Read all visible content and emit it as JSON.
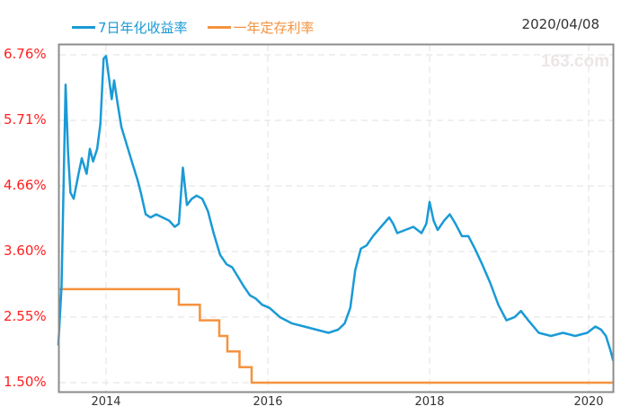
{
  "header": {
    "date": "2020/04/08",
    "watermark": "163.com"
  },
  "legend": [
    {
      "label": "7日年化收益率",
      "color": "#1a9ad6"
    },
    {
      "label": "一年定存利率",
      "color": "#f5923e"
    }
  ],
  "chart_data": {
    "type": "line",
    "title": "",
    "xlabel": "",
    "ylabel": "",
    "ylim": [
      1.5,
      6.76
    ],
    "xlim": [
      2013.4,
      2020.27
    ],
    "y_ticks": [
      "6.76%",
      "5.71%",
      "4.66%",
      "3.60%",
      "2.55%",
      "1.50%"
    ],
    "x_ticks": [
      "2014",
      "2016",
      "2018",
      "2020"
    ],
    "grid": true,
    "legend_position": "top-left",
    "series": [
      {
        "name": "7日年化收益率",
        "color": "#1a9ad6",
        "x": [
          2013.41,
          2013.45,
          2013.5,
          2013.53,
          2013.56,
          2013.6,
          2013.66,
          2013.7,
          2013.76,
          2013.8,
          2013.84,
          2013.89,
          2013.93,
          2013.97,
          2014.0,
          2014.02,
          2014.07,
          2014.1,
          2014.14,
          2014.19,
          2014.26,
          2014.33,
          2014.39,
          2014.43,
          2014.49,
          2014.55,
          2014.62,
          2014.7,
          2014.78,
          2014.85,
          2014.9,
          2014.95,
          2015.0,
          2015.06,
          2015.12,
          2015.19,
          2015.26,
          2015.33,
          2015.41,
          2015.49,
          2015.56,
          2015.63,
          2015.7,
          2015.78,
          2015.85,
          2015.93,
          2016.02,
          2016.15,
          2016.3,
          2016.45,
          2016.6,
          2016.75,
          2016.87,
          2016.95,
          2017.02,
          2017.08,
          2017.15,
          2017.22,
          2017.3,
          2017.4,
          2017.5,
          2017.55,
          2017.6,
          2017.7,
          2017.8,
          2017.9,
          2017.96,
          2018.0,
          2018.05,
          2018.1,
          2018.18,
          2018.25,
          2018.32,
          2018.4,
          2018.48,
          2018.56,
          2018.65,
          2018.75,
          2018.85,
          2018.95,
          2019.05,
          2019.13,
          2019.22,
          2019.35,
          2019.5,
          2019.65,
          2019.8,
          2019.95,
          2020.05,
          2020.12,
          2020.18,
          2020.24,
          2020.27
        ],
        "values": [
          2.1,
          3.05,
          6.28,
          5.2,
          4.55,
          4.45,
          4.85,
          5.1,
          4.85,
          5.25,
          5.05,
          5.25,
          5.65,
          6.7,
          6.74,
          6.55,
          6.05,
          6.35,
          6.0,
          5.6,
          5.3,
          5.0,
          4.75,
          4.55,
          4.2,
          4.15,
          4.2,
          4.15,
          4.1,
          4.0,
          4.05,
          4.95,
          4.35,
          4.45,
          4.5,
          4.45,
          4.25,
          3.9,
          3.55,
          3.4,
          3.35,
          3.2,
          3.05,
          2.9,
          2.85,
          2.75,
          2.7,
          2.55,
          2.45,
          2.4,
          2.35,
          2.3,
          2.35,
          2.45,
          2.7,
          3.3,
          3.65,
          3.7,
          3.85,
          4.0,
          4.15,
          4.05,
          3.9,
          3.95,
          4.0,
          3.9,
          4.05,
          4.4,
          4.1,
          3.95,
          4.1,
          4.2,
          4.05,
          3.85,
          3.85,
          3.65,
          3.4,
          3.1,
          2.75,
          2.5,
          2.55,
          2.65,
          2.5,
          2.3,
          2.25,
          2.3,
          2.25,
          2.3,
          2.4,
          2.35,
          2.25,
          2.0,
          1.85
        ]
      },
      {
        "name": "一年定存利率",
        "color": "#f5923e",
        "step": true,
        "x": [
          2013.41,
          2014.9,
          2015.16,
          2015.4,
          2015.5,
          2015.65,
          2015.8,
          2020.27
        ],
        "values": [
          3.0,
          2.75,
          2.5,
          2.25,
          2.0,
          1.75,
          1.5,
          1.5
        ]
      }
    ]
  }
}
